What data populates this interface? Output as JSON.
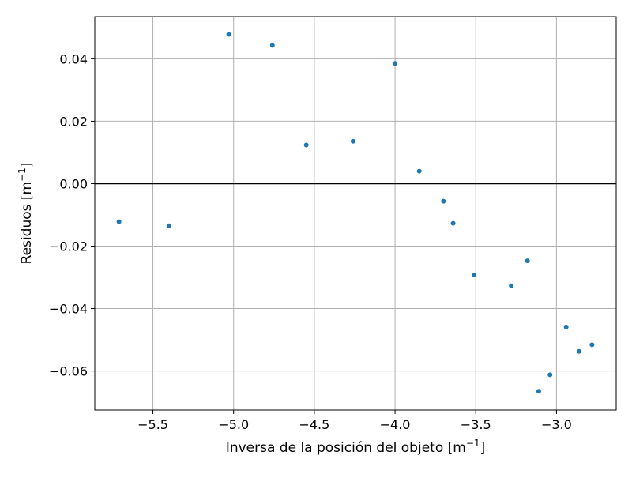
{
  "chart_data": {
    "type": "scatter",
    "title": "",
    "xlabel_main": "Inversa de la posición del objeto [m",
    "xlabel_sup": "−1",
    "xlabel_end": "]",
    "ylabel_main": "Residuos [m",
    "ylabel_sup": "−1",
    "ylabel_end": "]",
    "xlim": [
      -5.86,
      -2.63
    ],
    "ylim": [
      -0.0725,
      0.0535
    ],
    "xticks": [
      -5.5,
      -5.0,
      -4.5,
      -4.0,
      -3.5,
      -3.0
    ],
    "xtick_labels": [
      "−5.5",
      "−5.0",
      "−4.5",
      "−4.0",
      "−3.5",
      "−3.0"
    ],
    "yticks": [
      -0.06,
      -0.04,
      -0.02,
      0.0,
      0.02,
      0.04
    ],
    "ytick_labels": [
      "−0.06",
      "−0.04",
      "−0.02",
      "0.00",
      "0.02",
      "0.04"
    ],
    "grid": true,
    "hline_y": 0.0,
    "marker_color": "#1f77b4",
    "points": [
      {
        "x": -5.71,
        "y": -0.0122
      },
      {
        "x": -5.4,
        "y": -0.0135
      },
      {
        "x": -5.03,
        "y": 0.0478
      },
      {
        "x": -4.76,
        "y": 0.0443
      },
      {
        "x": -4.55,
        "y": 0.0124
      },
      {
        "x": -4.26,
        "y": 0.0136
      },
      {
        "x": -4.0,
        "y": 0.0385
      },
      {
        "x": -3.85,
        "y": 0.004
      },
      {
        "x": -3.7,
        "y": -0.0056
      },
      {
        "x": -3.64,
        "y": -0.0127
      },
      {
        "x": -3.51,
        "y": -0.0292
      },
      {
        "x": -3.28,
        "y": -0.0327
      },
      {
        "x": -3.18,
        "y": -0.0247
      },
      {
        "x": -3.11,
        "y": -0.0665
      },
      {
        "x": -3.04,
        "y": -0.0612
      },
      {
        "x": -2.94,
        "y": -0.0459
      },
      {
        "x": -2.86,
        "y": -0.0537
      },
      {
        "x": -2.78,
        "y": -0.0516
      }
    ]
  }
}
